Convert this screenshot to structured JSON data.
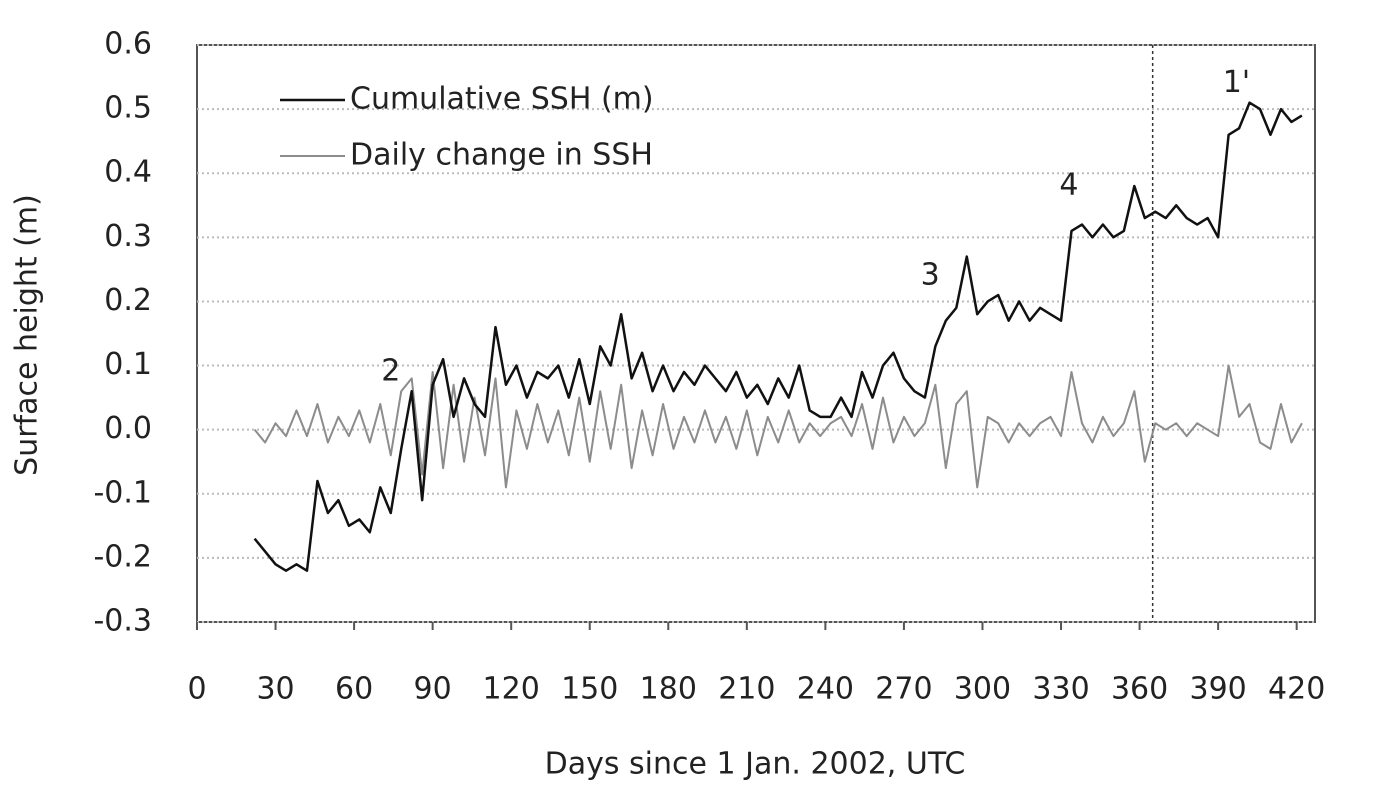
{
  "chart_data": {
    "type": "line",
    "xlabel": "Days since 1 Jan. 2002, UTC",
    "ylabel": "Surface height (m)",
    "x": [
      22,
      26,
      30,
      34,
      38,
      42,
      46,
      50,
      54,
      58,
      62,
      66,
      70,
      74,
      78,
      82,
      86,
      90,
      94,
      98,
      102,
      106,
      110,
      114,
      118,
      122,
      126,
      130,
      134,
      138,
      142,
      146,
      150,
      154,
      158,
      162,
      166,
      170,
      174,
      178,
      182,
      186,
      190,
      194,
      198,
      202,
      206,
      210,
      214,
      218,
      222,
      226,
      230,
      234,
      238,
      242,
      246,
      250,
      254,
      258,
      262,
      266,
      270,
      274,
      278,
      282,
      286,
      290,
      294,
      298,
      302,
      306,
      310,
      314,
      318,
      322,
      326,
      330,
      334,
      338,
      342,
      346,
      350,
      354,
      358,
      362,
      366,
      370,
      374,
      378,
      382,
      386,
      390,
      394,
      398,
      402,
      406,
      410,
      414,
      418,
      422
    ],
    "series": [
      {
        "name": "Cumulative SSH (m)",
        "color": "#111111",
        "width": 2.5,
        "values": [
          -0.17,
          -0.19,
          -0.21,
          -0.22,
          -0.21,
          -0.22,
          -0.08,
          -0.13,
          -0.11,
          -0.15,
          -0.14,
          -0.16,
          -0.09,
          -0.13,
          -0.03,
          0.06,
          -0.11,
          0.07,
          0.11,
          0.02,
          0.08,
          0.04,
          0.02,
          0.16,
          0.07,
          0.1,
          0.05,
          0.09,
          0.08,
          0.1,
          0.05,
          0.11,
          0.04,
          0.13,
          0.1,
          0.18,
          0.08,
          0.12,
          0.06,
          0.1,
          0.06,
          0.09,
          0.07,
          0.1,
          0.08,
          0.06,
          0.09,
          0.05,
          0.07,
          0.04,
          0.08,
          0.05,
          0.1,
          0.03,
          0.02,
          0.02,
          0.05,
          0.02,
          0.09,
          0.05,
          0.1,
          0.12,
          0.08,
          0.06,
          0.05,
          0.13,
          0.17,
          0.19,
          0.27,
          0.18,
          0.2,
          0.21,
          0.17,
          0.2,
          0.17,
          0.19,
          0.18,
          0.17,
          0.31,
          0.32,
          0.3,
          0.32,
          0.3,
          0.31,
          0.38,
          0.33,
          0.34,
          0.33,
          0.35,
          0.33,
          0.32,
          0.33,
          0.3,
          0.46,
          0.47,
          0.51,
          0.5,
          0.46,
          0.5,
          0.48,
          0.49
        ]
      },
      {
        "name": "Daily change in SSH",
        "color": "#8c8c8c",
        "width": 2,
        "values": [
          0,
          -0.02,
          0.01,
          -0.01,
          0.03,
          -0.01,
          0.04,
          -0.02,
          0.02,
          -0.01,
          0.03,
          -0.02,
          0.04,
          -0.04,
          0.06,
          0.08,
          -0.07,
          0.09,
          -0.06,
          0.07,
          -0.05,
          0.05,
          -0.04,
          0.08,
          -0.09,
          0.03,
          -0.03,
          0.04,
          -0.02,
          0.03,
          -0.04,
          0.05,
          -0.05,
          0.06,
          -0.03,
          0.07,
          -0.06,
          0.03,
          -0.04,
          0.04,
          -0.03,
          0.02,
          -0.02,
          0.03,
          -0.02,
          0.02,
          -0.03,
          0.03,
          -0.04,
          0.02,
          -0.02,
          0.03,
          -0.02,
          0.01,
          -0.01,
          0.01,
          0.02,
          -0.01,
          0.04,
          -0.03,
          0.05,
          -0.02,
          0.02,
          -0.01,
          0.01,
          0.07,
          -0.06,
          0.04,
          0.06,
          -0.09,
          0.02,
          0.01,
          -0.02,
          0.01,
          -0.01,
          0.01,
          0.02,
          -0.01,
          0.09,
          0.01,
          -0.02,
          0.02,
          -0.01,
          0.01,
          0.06,
          -0.05,
          0.01,
          0,
          0.01,
          -0.01,
          0.01,
          0,
          -0.01,
          0.1,
          0.02,
          0.04,
          -0.02,
          -0.03,
          0.04,
          -0.02,
          0.01
        ]
      }
    ],
    "xlim": [
      0,
      427
    ],
    "xticks": [
      0,
      30,
      60,
      90,
      120,
      150,
      180,
      210,
      240,
      270,
      300,
      330,
      360,
      390,
      420
    ],
    "ylim": [
      -0.3,
      0.6
    ],
    "yticks": [
      0.6,
      0.5,
      0.4,
      0.3,
      0.2,
      0.1,
      {
        "value": 0,
        "label": "0.0"
      },
      -0.1,
      -0.2,
      -0.3
    ],
    "grid": true,
    "legend": "upper left",
    "vline": 365,
    "annotations": [
      {
        "text": "2",
        "x": 74,
        "y": 0.09
      },
      {
        "text": "3",
        "x": 280,
        "y": 0.24
      },
      {
        "text": "4",
        "x": 333,
        "y": 0.38
      },
      {
        "text": "1'",
        "x": 397,
        "y": 0.54
      }
    ]
  }
}
